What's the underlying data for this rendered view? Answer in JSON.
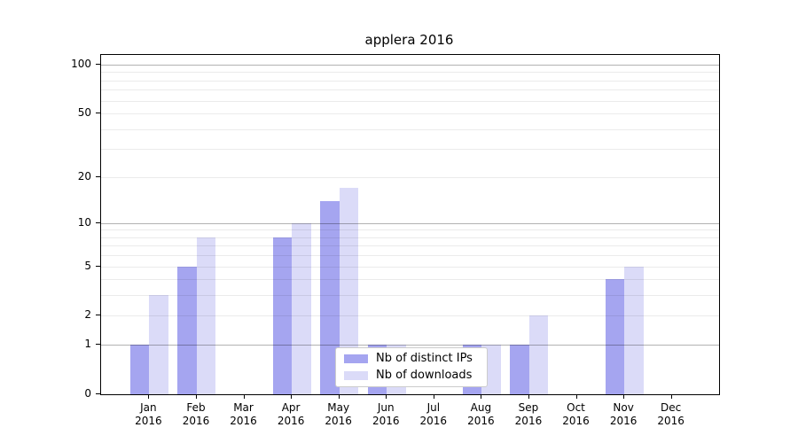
{
  "title": "applera 2016",
  "chart_data": {
    "type": "bar",
    "title": "applera 2016",
    "scale": "log1p",
    "grid": true,
    "x_labels": [
      {
        "month": "Jan",
        "year": "2016"
      },
      {
        "month": "Feb",
        "year": "2016"
      },
      {
        "month": "Mar",
        "year": "2016"
      },
      {
        "month": "Apr",
        "year": "2016"
      },
      {
        "month": "May",
        "year": "2016"
      },
      {
        "month": "Jun",
        "year": "2016"
      },
      {
        "month": "Jul",
        "year": "2016"
      },
      {
        "month": "Aug",
        "year": "2016"
      },
      {
        "month": "Sep",
        "year": "2016"
      },
      {
        "month": "Oct",
        "year": "2016"
      },
      {
        "month": "Nov",
        "year": "2016"
      },
      {
        "month": "Dec",
        "year": "2016"
      }
    ],
    "series": [
      {
        "name": "Nb of distinct IPs",
        "color": "#a5a5f0",
        "values": [
          1,
          5,
          0,
          8,
          14,
          1,
          0,
          1,
          1,
          0,
          4,
          0
        ]
      },
      {
        "name": "Nb of downloads",
        "color": "#dbdbf8",
        "values": [
          3,
          8,
          0,
          10,
          17,
          1,
          0,
          1,
          2,
          0,
          5,
          0
        ]
      }
    ],
    "y_ticks": [
      0,
      1,
      2,
      5,
      10,
      20,
      50,
      100
    ],
    "y_major_gridlines": [
      1,
      10,
      100
    ],
    "y_minor_gridlines": [
      2,
      3,
      4,
      5,
      6,
      7,
      8,
      9,
      20,
      30,
      40,
      50,
      60,
      70,
      80,
      90
    ],
    "ylim": [
      0,
      115
    ],
    "legend": {
      "position": "lower center",
      "entries": [
        "Nb of distinct IPs",
        "Nb of downloads"
      ]
    }
  }
}
